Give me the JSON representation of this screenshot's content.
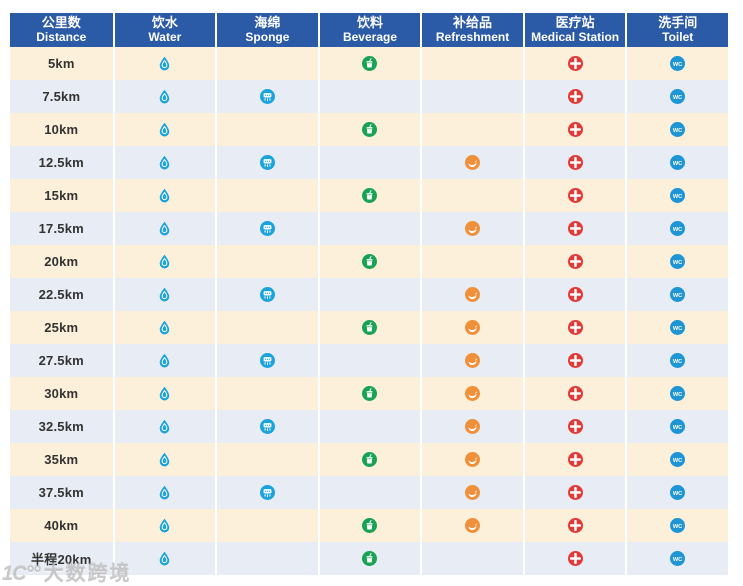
{
  "header": {
    "columns": [
      {
        "zh": "公里数",
        "en": "Distance"
      },
      {
        "zh": "饮水",
        "en": "Water"
      },
      {
        "zh": "海绵",
        "en": "Sponge"
      },
      {
        "zh": "饮料",
        "en": "Beverage"
      },
      {
        "zh": "补给品",
        "en": "Refreshment"
      },
      {
        "zh": "医疗站",
        "en": "Medical Station"
      },
      {
        "zh": "洗手间",
        "en": "Toilet"
      }
    ]
  },
  "columns_order": [
    "water",
    "sponge",
    "beverage",
    "refreshment",
    "medical",
    "toilet"
  ],
  "icons": {
    "water": {
      "name": "water-drop-icon",
      "color": "#1ba3de"
    },
    "sponge": {
      "name": "sponge-icon",
      "color": "#1ba3de"
    },
    "beverage": {
      "name": "beverage-cup-icon",
      "color": "#18a254"
    },
    "refreshment": {
      "name": "refreshment-icon",
      "color": "#f1903a"
    },
    "medical": {
      "name": "medical-cross-icon",
      "color": "#e23a36"
    },
    "toilet": {
      "name": "wc-icon",
      "color": "#1e95d4"
    }
  },
  "rows": [
    {
      "distance": "5km",
      "water": true,
      "sponge": false,
      "beverage": true,
      "refreshment": false,
      "medical": true,
      "toilet": true
    },
    {
      "distance": "7.5km",
      "water": true,
      "sponge": true,
      "beverage": false,
      "refreshment": false,
      "medical": true,
      "toilet": true
    },
    {
      "distance": "10km",
      "water": true,
      "sponge": false,
      "beverage": true,
      "refreshment": false,
      "medical": true,
      "toilet": true
    },
    {
      "distance": "12.5km",
      "water": true,
      "sponge": true,
      "beverage": false,
      "refreshment": true,
      "medical": true,
      "toilet": true
    },
    {
      "distance": "15km",
      "water": true,
      "sponge": false,
      "beverage": true,
      "refreshment": false,
      "medical": true,
      "toilet": true
    },
    {
      "distance": "17.5km",
      "water": true,
      "sponge": true,
      "beverage": false,
      "refreshment": true,
      "medical": true,
      "toilet": true
    },
    {
      "distance": "20km",
      "water": true,
      "sponge": false,
      "beverage": true,
      "refreshment": false,
      "medical": true,
      "toilet": true
    },
    {
      "distance": "22.5km",
      "water": true,
      "sponge": true,
      "beverage": false,
      "refreshment": true,
      "medical": true,
      "toilet": true
    },
    {
      "distance": "25km",
      "water": true,
      "sponge": false,
      "beverage": true,
      "refreshment": true,
      "medical": true,
      "toilet": true
    },
    {
      "distance": "27.5km",
      "water": true,
      "sponge": true,
      "beverage": false,
      "refreshment": true,
      "medical": true,
      "toilet": true
    },
    {
      "distance": "30km",
      "water": true,
      "sponge": false,
      "beverage": true,
      "refreshment": true,
      "medical": true,
      "toilet": true
    },
    {
      "distance": "32.5km",
      "water": true,
      "sponge": true,
      "beverage": false,
      "refreshment": true,
      "medical": true,
      "toilet": true
    },
    {
      "distance": "35km",
      "water": true,
      "sponge": false,
      "beverage": true,
      "refreshment": true,
      "medical": true,
      "toilet": true
    },
    {
      "distance": "37.5km",
      "water": true,
      "sponge": true,
      "beverage": false,
      "refreshment": true,
      "medical": true,
      "toilet": true
    },
    {
      "distance": "40km",
      "water": true,
      "sponge": false,
      "beverage": true,
      "refreshment": true,
      "medical": true,
      "toilet": true
    },
    {
      "distance": "半程20km",
      "water": true,
      "sponge": false,
      "beverage": true,
      "refreshment": false,
      "medical": true,
      "toilet": true
    }
  ],
  "watermark": {
    "logo": "1C°°",
    "brand": "大数跨境"
  },
  "colors": {
    "header_bg": "#2b5aa7",
    "row_odd": "#fdf0da",
    "row_even": "#e8ecf5",
    "distance_text": "#333333"
  }
}
